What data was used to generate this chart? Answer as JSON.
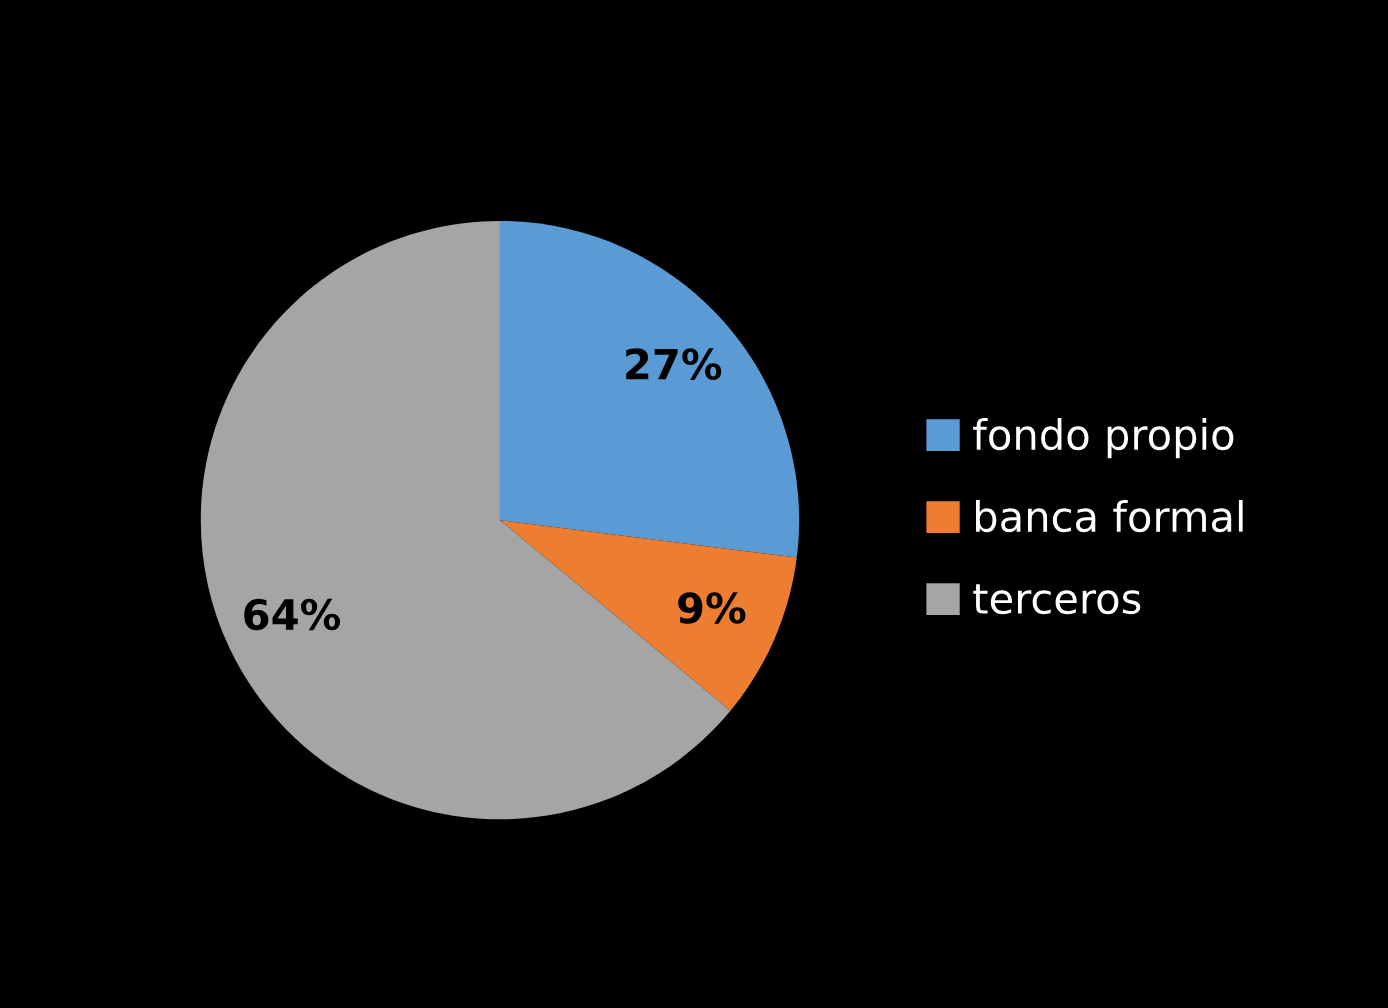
{
  "chart_data": {
    "type": "pie",
    "categories": [
      "fondo propio",
      "banca formal",
      "terceros"
    ],
    "values": [
      27,
      9,
      64
    ],
    "colors": [
      "#5b9bd5",
      "#ed7d31",
      "#a5a5a5"
    ],
    "value_labels": [
      "27%",
      "9%",
      "64%"
    ],
    "legend": "right"
  }
}
